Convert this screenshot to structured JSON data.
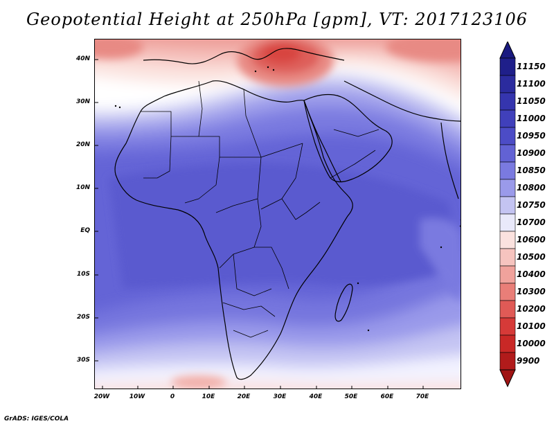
{
  "title": "Geopotential Height at 250hPa [gpm], VT: 2017123106",
  "credit": "GrADS: IGES/COLA",
  "map": {
    "region": "Africa, Middle East, Arabian Peninsula and western Indian Ocean",
    "lon_range": [
      -22,
      80
    ],
    "lat_range": [
      -37,
      45
    ],
    "lat_labels": [
      "40N",
      "30N",
      "20N",
      "10N",
      "EQ",
      "10S",
      "20S",
      "30S"
    ],
    "lon_labels": [
      "20W",
      "10W",
      "0",
      "10E",
      "20E",
      "30E",
      "40E",
      "50E",
      "60E",
      "70E"
    ]
  },
  "colorbar": {
    "levels": [
      "11150",
      "11100",
      "11050",
      "11000",
      "10950",
      "10900",
      "10850",
      "10800",
      "10750",
      "10700",
      "10600",
      "10500",
      "10400",
      "10300",
      "10200",
      "10100",
      "10000",
      "9900"
    ],
    "colors": [
      "#1f1f8a",
      "#2b2b9e",
      "#3535ae",
      "#4040bb",
      "#4c4cc6",
      "#6262d4",
      "#7a7ae0",
      "#9a9aea",
      "#c4c4f2",
      "#e9e9fa",
      "#fbe2df",
      "#f6c4bf",
      "#f0a29c",
      "#e97e78",
      "#e05a56",
      "#d63a38",
      "#c92826",
      "#b11b1b"
    ],
    "top_cap_color": "#1a1a80",
    "bottom_cap_color": "#a01414"
  }
}
